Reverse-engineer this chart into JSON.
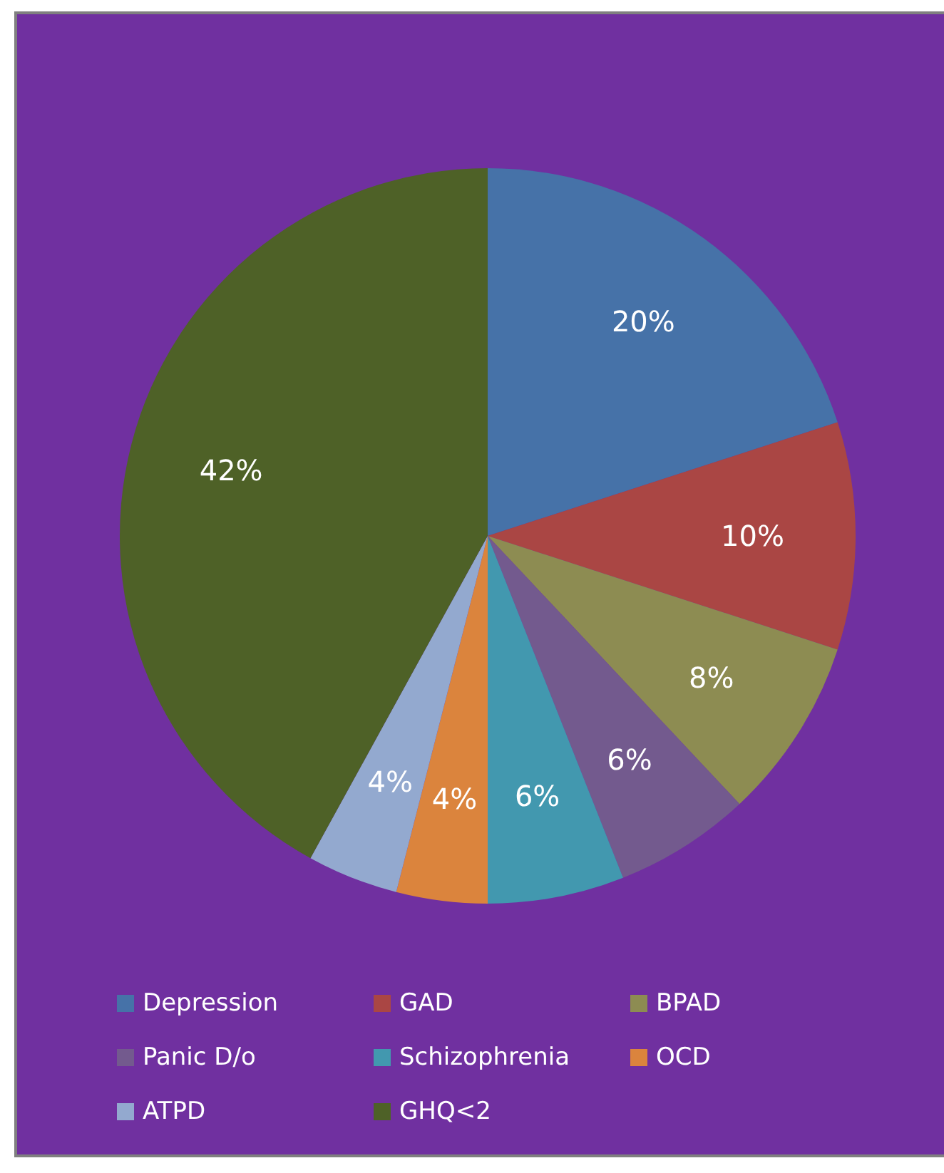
{
  "chart_data": {
    "type": "pie",
    "categories": [
      "Depression",
      "GAD",
      "BPAD",
      "Panic D/o",
      "Schizophrenia",
      "OCD",
      "ATPD",
      "GHQ<2"
    ],
    "values": [
      20,
      10,
      8,
      6,
      6,
      4,
      4,
      42
    ],
    "colors": [
      "#4672a8",
      "#aa4644",
      "#8d8c52",
      "#735a8e",
      "#4298af",
      "#db843d",
      "#93a9cf",
      "#4e6127"
    ],
    "value_labels": [
      "20%",
      "10%",
      "8%",
      "6%",
      "6%",
      "4%",
      "4%",
      "42%"
    ],
    "legend": "bottom"
  }
}
